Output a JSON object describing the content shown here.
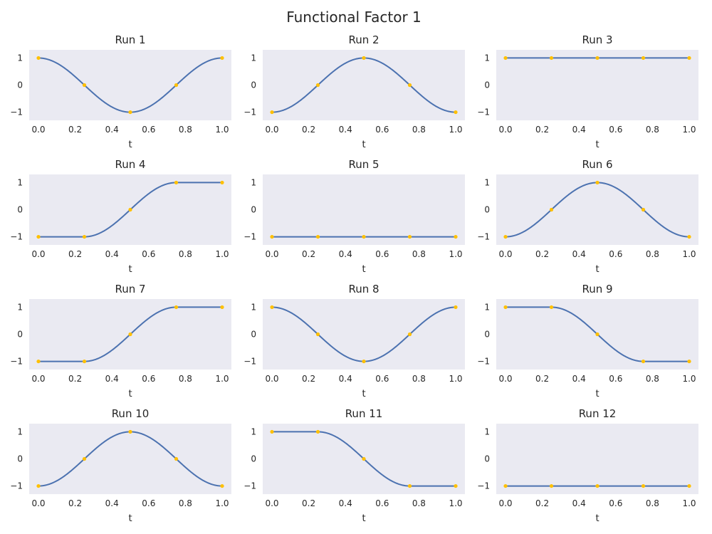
{
  "title": "Functional Factor 1",
  "colors": {
    "line": "#4c72b0",
    "marker": "#ffc000",
    "axes_bg": "#eaeaf2"
  },
  "chart_data": [
    {
      "type": "line",
      "title": "Run 1",
      "xlabel": "t",
      "xlim": [
        0,
        1
      ],
      "ylim": [
        -1.3,
        1.3
      ],
      "xticks": [
        "0.0",
        "0.2",
        "0.4",
        "0.6",
        "0.8",
        "1.0"
      ],
      "yticks": [
        "1",
        "0",
        "−1"
      ],
      "curve": "cos2pi",
      "points": {
        "x": [
          0,
          0.25,
          0.5,
          0.75,
          1
        ],
        "y": [
          1,
          0,
          -1,
          0,
          1
        ]
      }
    },
    {
      "type": "line",
      "title": "Run 2",
      "xlabel": "t",
      "xlim": [
        0,
        1
      ],
      "ylim": [
        -1.3,
        1.3
      ],
      "xticks": [
        "0.0",
        "0.2",
        "0.4",
        "0.6",
        "0.8",
        "1.0"
      ],
      "yticks": [
        "1",
        "0",
        "−1"
      ],
      "curve": "-cos2pi",
      "points": {
        "x": [
          0,
          0.25,
          0.5,
          0.75,
          1
        ],
        "y": [
          -1,
          0,
          1,
          0,
          -1
        ]
      }
    },
    {
      "type": "line",
      "title": "Run 3",
      "xlabel": "t",
      "xlim": [
        0,
        1
      ],
      "ylim": [
        -1.3,
        1.3
      ],
      "xticks": [
        "0.0",
        "0.2",
        "0.4",
        "0.6",
        "0.8",
        "1.0"
      ],
      "yticks": [
        "1",
        "0",
        "−1"
      ],
      "curve": "const1",
      "points": {
        "x": [
          0,
          0.25,
          0.5,
          0.75,
          1
        ],
        "y": [
          1,
          1,
          1,
          1,
          1
        ]
      }
    },
    {
      "type": "line",
      "title": "Run 4",
      "xlabel": "t",
      "xlim": [
        0,
        1
      ],
      "ylim": [
        -1.3,
        1.3
      ],
      "xticks": [
        "0.0",
        "0.2",
        "0.4",
        "0.6",
        "0.8",
        "1.0"
      ],
      "yticks": [
        "1",
        "0",
        "−1"
      ],
      "curve": "rise",
      "points": {
        "x": [
          0,
          0.25,
          0.5,
          0.75,
          1
        ],
        "y": [
          -1,
          -1,
          0,
          1,
          1
        ]
      }
    },
    {
      "type": "line",
      "title": "Run 5",
      "xlabel": "t",
      "xlim": [
        0,
        1
      ],
      "ylim": [
        -1.3,
        1.3
      ],
      "xticks": [
        "0.0",
        "0.2",
        "0.4",
        "0.6",
        "0.8",
        "1.0"
      ],
      "yticks": [
        "1",
        "0",
        "−1"
      ],
      "curve": "const-1",
      "points": {
        "x": [
          0,
          0.25,
          0.5,
          0.75,
          1
        ],
        "y": [
          -1,
          -1,
          -1,
          -1,
          -1
        ]
      }
    },
    {
      "type": "line",
      "title": "Run 6",
      "xlabel": "t",
      "xlim": [
        0,
        1
      ],
      "ylim": [
        -1.3,
        1.3
      ],
      "xticks": [
        "0.0",
        "0.2",
        "0.4",
        "0.6",
        "0.8",
        "1.0"
      ],
      "yticks": [
        "1",
        "0",
        "−1"
      ],
      "curve": "-cos2pi",
      "points": {
        "x": [
          0,
          0.25,
          0.5,
          0.75,
          1
        ],
        "y": [
          -1,
          0,
          1,
          0,
          -1
        ]
      }
    },
    {
      "type": "line",
      "title": "Run 7",
      "xlabel": "t",
      "xlim": [
        0,
        1
      ],
      "ylim": [
        -1.3,
        1.3
      ],
      "xticks": [
        "0.0",
        "0.2",
        "0.4",
        "0.6",
        "0.8",
        "1.0"
      ],
      "yticks": [
        "1",
        "0",
        "−1"
      ],
      "curve": "rise",
      "points": {
        "x": [
          0,
          0.25,
          0.5,
          0.75,
          1
        ],
        "y": [
          -1,
          -1,
          0,
          1,
          1
        ]
      }
    },
    {
      "type": "line",
      "title": "Run 8",
      "xlabel": "t",
      "xlim": [
        0,
        1
      ],
      "ylim": [
        -1.3,
        1.3
      ],
      "xticks": [
        "0.0",
        "0.2",
        "0.4",
        "0.6",
        "0.8",
        "1.0"
      ],
      "yticks": [
        "1",
        "0",
        "−1"
      ],
      "curve": "cos2pi",
      "points": {
        "x": [
          0,
          0.25,
          0.5,
          0.75,
          1
        ],
        "y": [
          1,
          0,
          -1,
          0,
          1
        ]
      }
    },
    {
      "type": "line",
      "title": "Run 9",
      "xlabel": "t",
      "xlim": [
        0,
        1
      ],
      "ylim": [
        -1.3,
        1.3
      ],
      "xticks": [
        "0.0",
        "0.2",
        "0.4",
        "0.6",
        "0.8",
        "1.0"
      ],
      "yticks": [
        "1",
        "0",
        "−1"
      ],
      "curve": "fall",
      "points": {
        "x": [
          0,
          0.25,
          0.5,
          0.75,
          1
        ],
        "y": [
          1,
          1,
          0,
          -1,
          -1
        ]
      }
    },
    {
      "type": "line",
      "title": "Run 10",
      "xlabel": "t",
      "xlim": [
        0,
        1
      ],
      "ylim": [
        -1.3,
        1.3
      ],
      "xticks": [
        "0.0",
        "0.2",
        "0.4",
        "0.6",
        "0.8",
        "1.0"
      ],
      "yticks": [
        "1",
        "0",
        "−1"
      ],
      "curve": "-cos2pi",
      "points": {
        "x": [
          0,
          0.25,
          0.5,
          0.75,
          1
        ],
        "y": [
          -1,
          0,
          1,
          0,
          -1
        ]
      }
    },
    {
      "type": "line",
      "title": "Run 11",
      "xlabel": "t",
      "xlim": [
        0,
        1
      ],
      "ylim": [
        -1.3,
        1.3
      ],
      "xticks": [
        "0.0",
        "0.2",
        "0.4",
        "0.6",
        "0.8",
        "1.0"
      ],
      "yticks": [
        "1",
        "0",
        "−1"
      ],
      "curve": "fall",
      "points": {
        "x": [
          0,
          0.25,
          0.5,
          0.75,
          1
        ],
        "y": [
          1,
          1,
          0,
          -1,
          -1
        ]
      }
    },
    {
      "type": "line",
      "title": "Run 12",
      "xlabel": "t",
      "xlim": [
        0,
        1
      ],
      "ylim": [
        -1.3,
        1.3
      ],
      "xticks": [
        "0.0",
        "0.2",
        "0.4",
        "0.6",
        "0.8",
        "1.0"
      ],
      "yticks": [
        "1",
        "0",
        "−1"
      ],
      "curve": "const-1",
      "points": {
        "x": [
          0,
          0.25,
          0.5,
          0.75,
          1
        ],
        "y": [
          -1,
          -1,
          -1,
          -1,
          -1
        ]
      }
    }
  ]
}
